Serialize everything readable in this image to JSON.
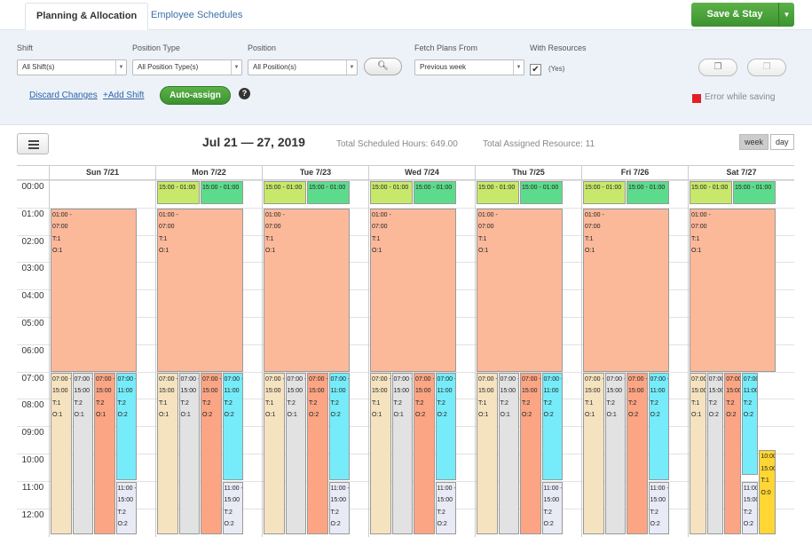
{
  "tabs": [
    {
      "label": "Planning & Allocation",
      "active": true
    },
    {
      "label": "Employee Schedules",
      "active": false
    }
  ],
  "save_button": {
    "label": "Save & Stay"
  },
  "filters": {
    "shift": {
      "label": "Shift",
      "value": "All Shift(s)"
    },
    "position_type": {
      "label": "Position Type",
      "value": "All Position Type(s)"
    },
    "position": {
      "label": "Position",
      "value": "All Position(s)"
    },
    "fetch_plans": {
      "label": "Fetch Plans From",
      "value": "Previous week"
    },
    "with_resources": {
      "label": "With Resources",
      "checked": true,
      "value_label": "(Yes)"
    }
  },
  "actions": {
    "discard": "Discard Changes",
    "add_shift": "+Add Shift",
    "auto_assign": "Auto-assign",
    "help": "?"
  },
  "error": {
    "text": "Error while saving",
    "color": "#e31e24"
  },
  "calendar": {
    "date_range": "Jul 21 — 27, 2019",
    "total_hours": "Total Scheduled Hours: 649.00",
    "total_resources": "Total Assigned Resource: 11",
    "views": [
      "week",
      "day"
    ],
    "active_view": "week",
    "days": [
      "Sun 7/21",
      "Mon 7/22",
      "Tue 7/23",
      "Wed 7/24",
      "Thu 7/25",
      "Fri 7/26",
      "Sat 7/27"
    ],
    "hours": [
      "00:00",
      "01:00",
      "02:00",
      "03:00",
      "04:00",
      "05:00",
      "06:00",
      "07:00",
      "08:00",
      "09:00",
      "10:00",
      "11:00",
      "12:00"
    ],
    "colors": {
      "night": "#fbb99a",
      "green1": "#c8e86b",
      "green2": "#5ddb8c",
      "beige": "#f5e3c0",
      "grey": "#e2e2e2",
      "salmon": "#fba584",
      "cyan": "#76ecfa",
      "lavender": "#e8eaf6",
      "yellow": "#ffd633"
    },
    "events": [
      {
        "day": 0,
        "sh": 1,
        "eh": 7.05,
        "lane": 0,
        "lanes": 1,
        "color": "night",
        "lines": [
          "01:00 -",
          "07:00",
          "T:1",
          "O:1"
        ]
      },
      {
        "day": 0,
        "sh": 7,
        "eh": 13,
        "lane": 0,
        "lanes": 4,
        "color": "beige",
        "lines": [
          "07:00 -",
          "15:00",
          "T:1",
          "O:1"
        ]
      },
      {
        "day": 0,
        "sh": 7,
        "eh": 13,
        "lane": 1,
        "lanes": 4,
        "color": "grey",
        "lines": [
          "07:00 -",
          "15:00",
          "T:2",
          "O:1"
        ]
      },
      {
        "day": 0,
        "sh": 7,
        "eh": 13,
        "lane": 2,
        "lanes": 4,
        "color": "salmon",
        "lines": [
          "07:00 -",
          "15:00",
          "T:2",
          "O:1"
        ]
      },
      {
        "day": 0,
        "sh": 7,
        "eh": 11,
        "lane": 3,
        "lanes": 4,
        "color": "cyan",
        "lines": [
          "07:00 -",
          "11:00",
          "T:2",
          "O:2"
        ]
      },
      {
        "day": 0,
        "sh": 11,
        "eh": 13,
        "lane": 3,
        "lanes": 4,
        "color": "lavender",
        "lines": [
          "11:00 -",
          "15:00",
          "T:2",
          "O:2"
        ]
      },
      {
        "day": 1,
        "sh": 0,
        "eh": 0.9,
        "lane": 0,
        "lanes": 2,
        "color": "green1",
        "lines": [
          "15:00 - 01:00"
        ]
      },
      {
        "day": 1,
        "sh": 0,
        "eh": 0.9,
        "lane": 1,
        "lanes": 2,
        "color": "green2",
        "lines": [
          "15:00 - 01:00"
        ]
      },
      {
        "day": 1,
        "sh": 1,
        "eh": 7.05,
        "lane": 0,
        "lanes": 1,
        "color": "night",
        "lines": [
          "01:00 -",
          "07:00",
          "T:1",
          "O:1"
        ]
      },
      {
        "day": 1,
        "sh": 7,
        "eh": 13,
        "lane": 0,
        "lanes": 4,
        "color": "beige",
        "lines": [
          "07:00 -",
          "15:00",
          "T:1",
          "O:1"
        ]
      },
      {
        "day": 1,
        "sh": 7,
        "eh": 13,
        "lane": 1,
        "lanes": 4,
        "color": "grey",
        "lines": [
          "07:00 -",
          "15:00",
          "T:2",
          "O:1"
        ]
      },
      {
        "day": 1,
        "sh": 7,
        "eh": 13,
        "lane": 2,
        "lanes": 4,
        "color": "salmon",
        "lines": [
          "07:00 -",
          "15:00",
          "T:2",
          "O:2"
        ]
      },
      {
        "day": 1,
        "sh": 7,
        "eh": 11,
        "lane": 3,
        "lanes": 4,
        "color": "cyan",
        "lines": [
          "07:00 -",
          "11:00",
          "T:2",
          "O:2"
        ]
      },
      {
        "day": 1,
        "sh": 11,
        "eh": 13,
        "lane": 3,
        "lanes": 4,
        "color": "lavender",
        "lines": [
          "11:00 -",
          "15:00",
          "T:2",
          "O:2"
        ]
      },
      {
        "day": 2,
        "sh": 0,
        "eh": 0.9,
        "lane": 0,
        "lanes": 2,
        "color": "green1",
        "lines": [
          "15:00 - 01:00"
        ]
      },
      {
        "day": 2,
        "sh": 0,
        "eh": 0.9,
        "lane": 1,
        "lanes": 2,
        "color": "green2",
        "lines": [
          "15:00 - 01:00"
        ]
      },
      {
        "day": 2,
        "sh": 1,
        "eh": 7.05,
        "lane": 0,
        "lanes": 1,
        "color": "night",
        "lines": [
          "01:00 -",
          "07:00",
          "T:1",
          "O:1"
        ]
      },
      {
        "day": 2,
        "sh": 7,
        "eh": 13,
        "lane": 0,
        "lanes": 4,
        "color": "beige",
        "lines": [
          "07:00 -",
          "15:00",
          "T:1",
          "O:1"
        ]
      },
      {
        "day": 2,
        "sh": 7,
        "eh": 13,
        "lane": 1,
        "lanes": 4,
        "color": "grey",
        "lines": [
          "07:00 -",
          "15:00",
          "T:2",
          "O:1"
        ]
      },
      {
        "day": 2,
        "sh": 7,
        "eh": 13,
        "lane": 2,
        "lanes": 4,
        "color": "salmon",
        "lines": [
          "07:00 -",
          "15:00",
          "T:2",
          "O:2"
        ]
      },
      {
        "day": 2,
        "sh": 7,
        "eh": 11,
        "lane": 3,
        "lanes": 4,
        "color": "cyan",
        "lines": [
          "07:00 -",
          "11:00",
          "T:2",
          "O:2"
        ]
      },
      {
        "day": 2,
        "sh": 11,
        "eh": 13,
        "lane": 3,
        "lanes": 4,
        "color": "lavender",
        "lines": [
          "11:00 -",
          "15:00",
          "T:2",
          "O:2"
        ]
      },
      {
        "day": 3,
        "sh": 0,
        "eh": 0.9,
        "lane": 0,
        "lanes": 2,
        "color": "green1",
        "lines": [
          "15:00 - 01:00"
        ]
      },
      {
        "day": 3,
        "sh": 0,
        "eh": 0.9,
        "lane": 1,
        "lanes": 2,
        "color": "green2",
        "lines": [
          "15:00 - 01:00"
        ]
      },
      {
        "day": 3,
        "sh": 1,
        "eh": 7.05,
        "lane": 0,
        "lanes": 1,
        "color": "night",
        "lines": [
          "01:00 -",
          "07:00",
          "T:1",
          "O:1"
        ]
      },
      {
        "day": 3,
        "sh": 7,
        "eh": 13,
        "lane": 0,
        "lanes": 4,
        "color": "beige",
        "lines": [
          "07:00 -",
          "15:00",
          "T:1",
          "O:1"
        ]
      },
      {
        "day": 3,
        "sh": 7,
        "eh": 13,
        "lane": 1,
        "lanes": 4,
        "color": "grey",
        "lines": [
          "07:00 -",
          "15:00",
          "T:2",
          "O:1"
        ]
      },
      {
        "day": 3,
        "sh": 7,
        "eh": 13,
        "lane": 2,
        "lanes": 4,
        "color": "salmon",
        "lines": [
          "07:00 -",
          "15:00",
          "T:2",
          "O:2"
        ]
      },
      {
        "day": 3,
        "sh": 7,
        "eh": 11,
        "lane": 3,
        "lanes": 4,
        "color": "cyan",
        "lines": [
          "07:00 -",
          "11:00",
          "T:2",
          "O:2"
        ]
      },
      {
        "day": 3,
        "sh": 11,
        "eh": 13,
        "lane": 3,
        "lanes": 4,
        "color": "lavender",
        "lines": [
          "11:00 -",
          "15:00",
          "T:2",
          "O:2"
        ]
      },
      {
        "day": 4,
        "sh": 0,
        "eh": 0.9,
        "lane": 0,
        "lanes": 2,
        "color": "green1",
        "lines": [
          "15:00 - 01:00"
        ]
      },
      {
        "day": 4,
        "sh": 0,
        "eh": 0.9,
        "lane": 1,
        "lanes": 2,
        "color": "green2",
        "lines": [
          "15:00 - 01:00"
        ]
      },
      {
        "day": 4,
        "sh": 1,
        "eh": 7.05,
        "lane": 0,
        "lanes": 1,
        "color": "night",
        "lines": [
          "01:00 -",
          "07:00",
          "T:1",
          "O:1"
        ]
      },
      {
        "day": 4,
        "sh": 7,
        "eh": 13,
        "lane": 0,
        "lanes": 4,
        "color": "beige",
        "lines": [
          "07:00 -",
          "15:00",
          "T:1",
          "O:1"
        ]
      },
      {
        "day": 4,
        "sh": 7,
        "eh": 13,
        "lane": 1,
        "lanes": 4,
        "color": "grey",
        "lines": [
          "07:00 -",
          "15:00",
          "T:2",
          "O:1"
        ]
      },
      {
        "day": 4,
        "sh": 7,
        "eh": 13,
        "lane": 2,
        "lanes": 4,
        "color": "salmon",
        "lines": [
          "07:00 -",
          "15:00",
          "T:2",
          "O:2"
        ]
      },
      {
        "day": 4,
        "sh": 7,
        "eh": 11,
        "lane": 3,
        "lanes": 4,
        "color": "cyan",
        "lines": [
          "07:00 -",
          "11:00",
          "T:2",
          "O:2"
        ]
      },
      {
        "day": 4,
        "sh": 11,
        "eh": 13,
        "lane": 3,
        "lanes": 4,
        "color": "lavender",
        "lines": [
          "11:00 -",
          "15:00",
          "T:2",
          "O:2"
        ]
      },
      {
        "day": 5,
        "sh": 0,
        "eh": 0.9,
        "lane": 0,
        "lanes": 2,
        "color": "green1",
        "lines": [
          "15:00 - 01:00"
        ]
      },
      {
        "day": 5,
        "sh": 0,
        "eh": 0.9,
        "lane": 1,
        "lanes": 2,
        "color": "green2",
        "lines": [
          "15:00 - 01:00"
        ]
      },
      {
        "day": 5,
        "sh": 1,
        "eh": 7.05,
        "lane": 0,
        "lanes": 1,
        "color": "night",
        "lines": [
          "01:00 -",
          "07:00",
          "T:1",
          "O:1"
        ]
      },
      {
        "day": 5,
        "sh": 7,
        "eh": 13,
        "lane": 0,
        "lanes": 4,
        "color": "beige",
        "lines": [
          "07:00 -",
          "15:00",
          "T:1",
          "O:1"
        ]
      },
      {
        "day": 5,
        "sh": 7,
        "eh": 13,
        "lane": 1,
        "lanes": 4,
        "color": "grey",
        "lines": [
          "07:00 -",
          "15:00",
          "T:2",
          "O:1"
        ]
      },
      {
        "day": 5,
        "sh": 7,
        "eh": 13,
        "lane": 2,
        "lanes": 4,
        "color": "salmon",
        "lines": [
          "07:00 -",
          "15:00",
          "T:2",
          "O:2"
        ]
      },
      {
        "day": 5,
        "sh": 7,
        "eh": 11,
        "lane": 3,
        "lanes": 4,
        "color": "cyan",
        "lines": [
          "07:00 -",
          "11:00",
          "T:2",
          "O:2"
        ]
      },
      {
        "day": 5,
        "sh": 11,
        "eh": 13,
        "lane": 3,
        "lanes": 4,
        "color": "lavender",
        "lines": [
          "11:00 -",
          "15:00",
          "T:2",
          "O:2"
        ]
      },
      {
        "day": 6,
        "sh": 0,
        "eh": 0.9,
        "lane": 0,
        "lanes": 2,
        "color": "green1",
        "lines": [
          "15:00 - 01:00"
        ]
      },
      {
        "day": 6,
        "sh": 0,
        "eh": 0.9,
        "lane": 1,
        "lanes": 2,
        "color": "green2",
        "lines": [
          "15:00 - 01:00"
        ]
      },
      {
        "day": 6,
        "sh": 1,
        "eh": 7.05,
        "lane": 0,
        "lanes": 1,
        "color": "night",
        "lines": [
          "01:00 -",
          "07:00",
          "T:1",
          "O:1"
        ]
      },
      {
        "day": 6,
        "sh": 7,
        "eh": 13,
        "lane": 0,
        "lanes": 5,
        "color": "beige",
        "lines": [
          "07:00",
          "15:00",
          "T:1",
          "O:1"
        ]
      },
      {
        "day": 6,
        "sh": 7,
        "eh": 13,
        "lane": 1,
        "lanes": 5,
        "color": "grey",
        "lines": [
          "07:00",
          "15:00",
          "T:2",
          "O:2"
        ]
      },
      {
        "day": 6,
        "sh": 7,
        "eh": 13,
        "lane": 2,
        "lanes": 5,
        "color": "salmon",
        "lines": [
          "07:00",
          "15:00",
          "T:2",
          "O:2"
        ]
      },
      {
        "day": 6,
        "sh": 7,
        "eh": 10.8,
        "lane": 3,
        "lanes": 5,
        "color": "cyan",
        "lines": [
          "07:00 -",
          "11:00",
          "T:2",
          "O:2"
        ]
      },
      {
        "day": 6,
        "sh": 11,
        "eh": 13,
        "lane": 3,
        "lanes": 5,
        "color": "lavender",
        "lines": [
          "11:00 -",
          "15:00",
          "T:2",
          "O:2"
        ]
      },
      {
        "day": 6,
        "sh": 9.85,
        "eh": 13,
        "lane": 4,
        "lanes": 5,
        "color": "yellow",
        "lines": [
          "10:00 -",
          "15:00",
          "T:1",
          "O:0"
        ]
      }
    ]
  }
}
